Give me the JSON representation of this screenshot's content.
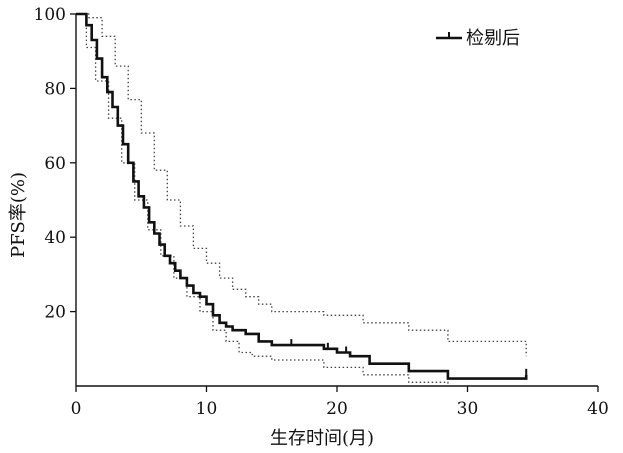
{
  "chart_data": {
    "type": "line",
    "title": "",
    "xlabel": "生存时间(月)",
    "ylabel": "PFS率(%)",
    "xlim": [
      0,
      40
    ],
    "ylim": [
      0,
      100
    ],
    "xticks": [
      "0",
      "10",
      "20",
      "30",
      "40"
    ],
    "yticks": [
      "20",
      "40",
      "60",
      "80",
      "100"
    ],
    "grid": false,
    "legend": {
      "position": "top-right",
      "entries": [
        "检剔后"
      ]
    },
    "colors": {
      "curve": "#111111",
      "ci": "#444444",
      "axis": "#111111"
    },
    "series": [
      {
        "name": "检剔后",
        "style": "solid-step",
        "x": [
          0,
          0.8,
          1.2,
          1.6,
          2.0,
          2.4,
          2.8,
          3.2,
          3.6,
          4.0,
          4.4,
          4.8,
          5.2,
          5.6,
          6.0,
          6.4,
          6.8,
          7.2,
          7.6,
          8.0,
          8.5,
          9.0,
          9.5,
          10.0,
          10.5,
          11.0,
          11.5,
          12.0,
          13.0,
          14.0,
          15.0,
          16.5,
          19.0,
          20.0,
          21.0,
          22.5,
          25.5,
          28.5,
          34.5
        ],
        "y": [
          100,
          97,
          93,
          88,
          83,
          79,
          75,
          70,
          65,
          60,
          55,
          51,
          48,
          44,
          41,
          38,
          35,
          33,
          31,
          29,
          27,
          25,
          24,
          22,
          19,
          17,
          16,
          15,
          14,
          12,
          11,
          11,
          10,
          9,
          8,
          6,
          4,
          2,
          3
        ],
        "censored_x": [
          16.5,
          19.3,
          20.7,
          34.5
        ]
      },
      {
        "name": "",
        "style": "dotted-upper",
        "x": [
          0,
          1.0,
          2.0,
          3.0,
          4.0,
          5.0,
          6.0,
          7.0,
          8.0,
          9.0,
          10.0,
          11.0,
          12.0,
          13.0,
          14.0,
          15.0,
          19.0,
          22.0,
          25.5,
          28.5,
          34.5
        ],
        "y": [
          100,
          99,
          94,
          86,
          77,
          68,
          58,
          50,
          43,
          37,
          33,
          29,
          26,
          24,
          22,
          20,
          19,
          17,
          15,
          12,
          8
        ]
      },
      {
        "name": "",
        "style": "dotted-lower",
        "x": [
          0,
          0.8,
          1.5,
          2.5,
          3.5,
          4.5,
          5.5,
          6.5,
          7.5,
          8.5,
          9.5,
          10.5,
          11.5,
          12.5,
          13.5,
          15.0,
          19.0,
          22.0,
          25.5,
          28.5
        ],
        "y": [
          100,
          91,
          82,
          72,
          60,
          50,
          42,
          35,
          29,
          24,
          20,
          15,
          12,
          9,
          8,
          7,
          5,
          3,
          1,
          0
        ]
      }
    ]
  }
}
